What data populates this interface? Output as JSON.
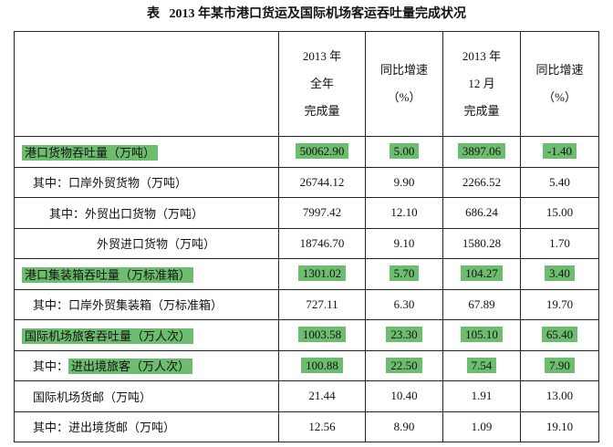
{
  "title": "表   2013 年某市港口货运及国际机场客运吞吐量完成状况",
  "table": {
    "headers": [
      [
        "2013 年",
        "全年",
        "完成量"
      ],
      [
        "同比增速",
        "（%）"
      ],
      [
        "2013 年",
        "12 月",
        "完成量"
      ],
      [
        "同比增速",
        "（%）"
      ]
    ],
    "rows": [
      {
        "label": "港口货物吞吐量（万吨）",
        "highlight": true,
        "cells": [
          "50062.90",
          "5.00",
          "3897.06",
          "-1.40"
        ]
      },
      {
        "prefix": "其中：",
        "label": "口岸外贸货物（万吨）",
        "highlight": false,
        "cells": [
          "26744.12",
          "9.90",
          "2266.52",
          "5.40"
        ]
      },
      {
        "prefix": "其中：",
        "label": "外贸出口货物（万吨）",
        "highlight": false,
        "cells": [
          "7997.42",
          "12.10",
          "686.24",
          "15.00"
        ]
      },
      {
        "label": "外贸进口货物（万吨）",
        "highlight": false,
        "cells": [
          "18746.70",
          "9.10",
          "1580.28",
          "1.70"
        ]
      },
      {
        "label": "港口集装箱吞吐量（万标准箱）",
        "highlight": true,
        "cells": [
          "1301.02",
          "5.70",
          "104.27",
          "3.40"
        ]
      },
      {
        "prefix": "其中：",
        "label": "口岸外贸集装箱（万标准箱）",
        "highlight": false,
        "cells": [
          "727.11",
          "6.30",
          "67.89",
          "19.70"
        ]
      },
      {
        "label": "国际机场旅客吞吐量（万人次）",
        "highlight": true,
        "cells": [
          "1003.58",
          "23.30",
          "105.10",
          "65.40"
        ]
      },
      {
        "prefix": "其中：",
        "label": "进出境旅客（万人次）",
        "highlight": true,
        "cells": [
          "100.88",
          "22.50",
          "7.54",
          "7.90"
        ]
      },
      {
        "label": "国际机场货邮（万吨）",
        "highlight": false,
        "cells": [
          "21.44",
          "10.40",
          "1.91",
          "13.00"
        ]
      },
      {
        "prefix": "其中：",
        "label": "进出境货邮（万吨）",
        "highlight": false,
        "cells": [
          "12.56",
          "8.90",
          "1.09",
          "19.10"
        ]
      }
    ]
  }
}
